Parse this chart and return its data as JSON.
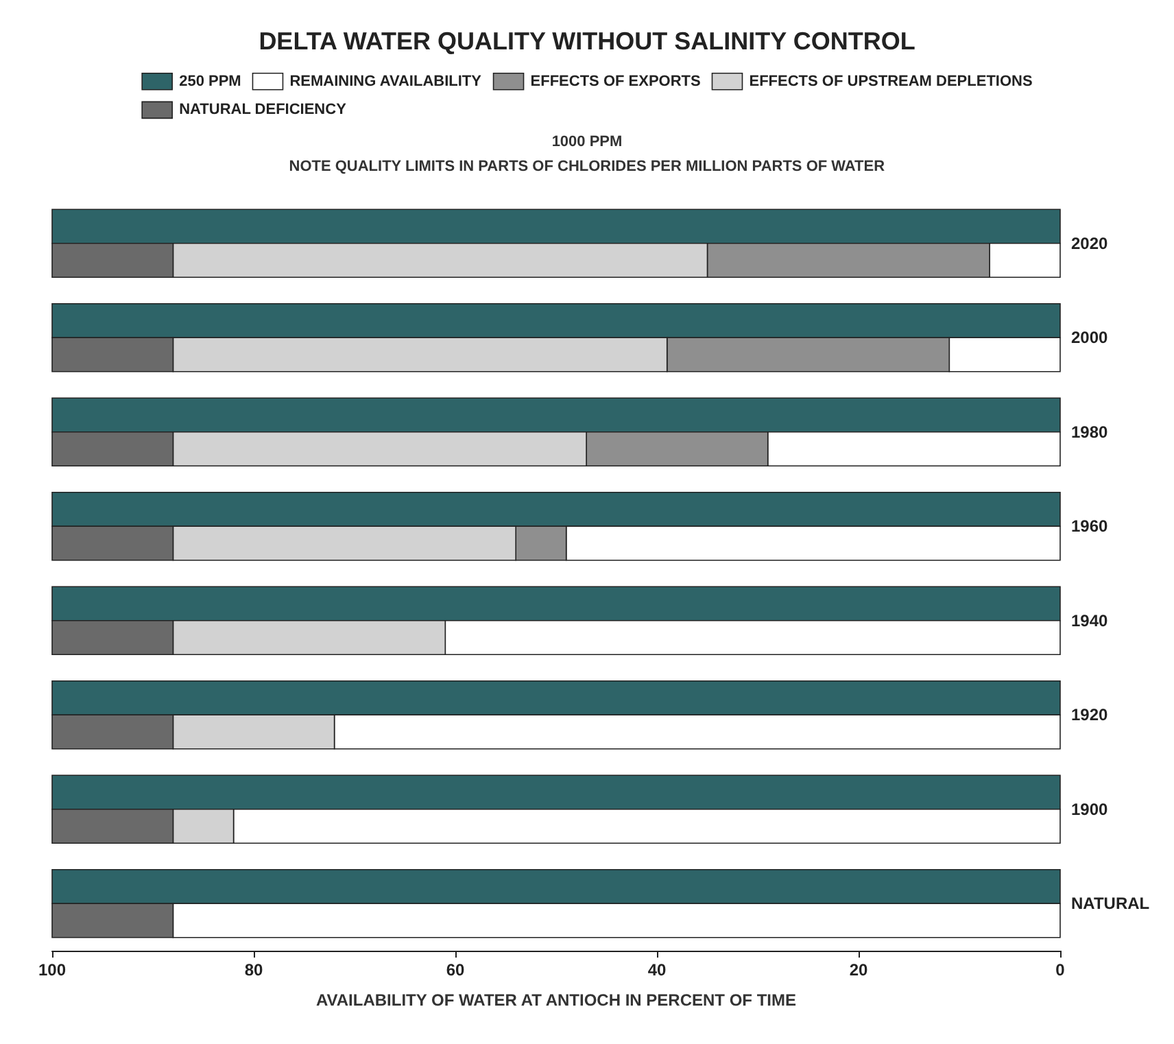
{
  "chart_data": {
    "type": "bar",
    "orientation": "horizontal",
    "title": "DELTA WATER QUALITY WITHOUT SALINITY CONTROL",
    "xlabel": "AVAILABILITY OF WATER AT ANTIOCH IN PERCENT OF TIME",
    "categories": [
      "2020",
      "2000",
      "1980",
      "1960",
      "1940",
      "1920",
      "1900",
      "NATURAL"
    ],
    "series": [
      {
        "name": "250 PPM",
        "color": "#2e6468",
        "values": [
          100,
          100,
          100,
          100,
          100,
          100,
          100,
          100
        ]
      },
      {
        "name": "REMAINING AVAILABILITY",
        "color": "#ffffff",
        "base": [
          0,
          0,
          0,
          0,
          0,
          0,
          0,
          0
        ],
        "values": [
          7,
          11,
          29,
          49,
          61,
          72,
          82,
          88
        ]
      },
      {
        "name": "EFFECTS OF EXPORTS",
        "color": "#8f8f8f",
        "base": [
          7,
          11,
          29,
          49,
          null,
          null,
          null,
          null
        ],
        "values": [
          28,
          28,
          18,
          5,
          null,
          null,
          null,
          null
        ]
      },
      {
        "name": "EFFECTS OF UPSTREAM DEPLETIONS",
        "color": "#d2d2d2",
        "base": [
          35,
          39,
          47,
          54,
          61,
          72,
          82,
          null
        ],
        "values": [
          53,
          49,
          41,
          34,
          27,
          16,
          6,
          null
        ]
      },
      {
        "name": "NATURAL DEFICIENCY",
        "color": "#6a6a6a",
        "base": [
          88,
          88,
          88,
          88,
          88,
          88,
          88,
          88
        ],
        "values": [
          12,
          12,
          12,
          12,
          12,
          12,
          12,
          12
        ]
      }
    ],
    "xlim": [
      100,
      0
    ],
    "xticks": [
      100,
      80,
      60,
      40,
      20,
      0
    ],
    "grid": false,
    "legend": "top",
    "annotations": [
      "1000 PPM",
      "NOTE QUALITY LIMITS IN PARTS OF CHLORIDES PER MILLION PARTS OF WATER"
    ]
  }
}
